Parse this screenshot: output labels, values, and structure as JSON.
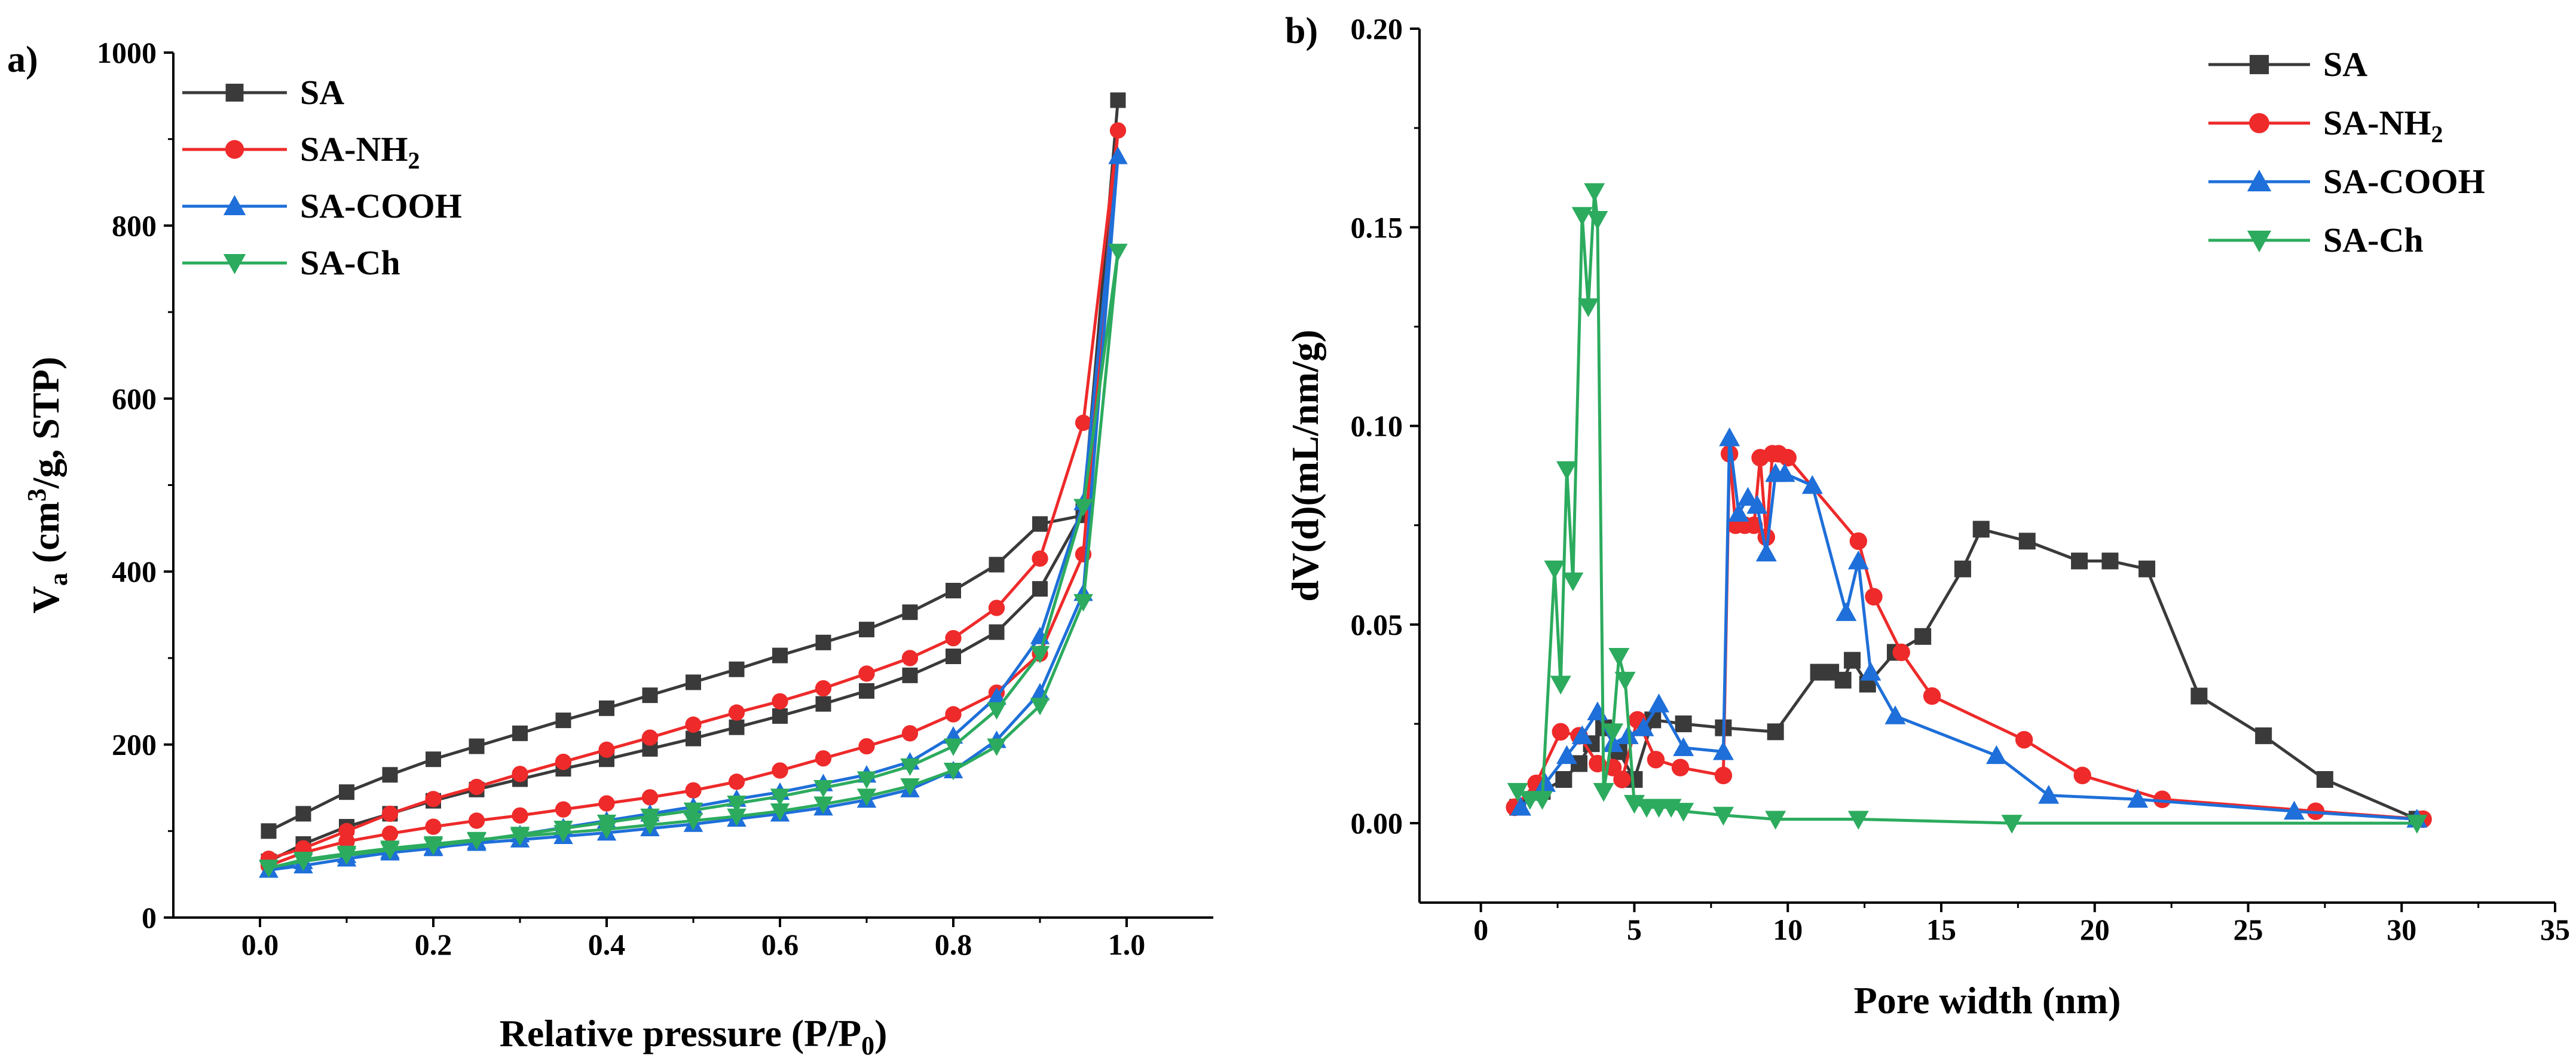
{
  "chart_data": [
    {
      "type": "line",
      "panel_label": "a)",
      "xlabel": "Relative pressure (P/P",
      "xlabel_sub": "0",
      "xlabel_suffix": ")",
      "ylabel": "V",
      "ylabel_sub": "a",
      "ylabel_rest": " (cm",
      "ylabel_sup": "3",
      "ylabel_suffix": "/g,  STP)",
      "xlim": [
        -0.1,
        1.1
      ],
      "ylim": [
        0,
        1000
      ],
      "xticks": [
        0.0,
        0.2,
        0.4,
        0.6,
        0.8,
        1.0
      ],
      "xtick_labels": [
        "0.0",
        "0.2",
        "0.4",
        "0.6",
        "0.8",
        "1.0"
      ],
      "yticks": [
        0,
        200,
        400,
        600,
        800,
        1000
      ],
      "ytick_labels": [
        "0",
        "200",
        "400",
        "600",
        "800",
        "1000"
      ],
      "legend": "top-left",
      "series": [
        {
          "name": "SA",
          "sub": "",
          "color": "#3a3a3a",
          "marker": "square",
          "x": [
            0.01,
            0.05,
            0.1,
            0.15,
            0.2,
            0.25,
            0.3,
            0.35,
            0.4,
            0.45,
            0.5,
            0.55,
            0.6,
            0.65,
            0.7,
            0.75,
            0.8,
            0.85,
            0.9,
            0.95,
            0.99,
            0.95,
            0.9,
            0.85,
            0.8,
            0.75,
            0.7,
            0.65,
            0.6,
            0.55,
            0.5,
            0.45,
            0.4,
            0.35,
            0.3,
            0.25,
            0.2,
            0.15,
            0.1,
            0.05,
            0.01
          ],
          "y": [
            65,
            85,
            105,
            120,
            135,
            148,
            160,
            172,
            183,
            195,
            207,
            220,
            233,
            247,
            262,
            280,
            302,
            330,
            380,
            470,
            945,
            465,
            455,
            408,
            378,
            353,
            333,
            318,
            303,
            287,
            272,
            257,
            242,
            228,
            213,
            198,
            183,
            165,
            145,
            120,
            100
          ]
        },
        {
          "name": "SA-NH",
          "sub": "2",
          "color": "#ee2a2a",
          "marker": "circle",
          "x": [
            0.01,
            0.05,
            0.1,
            0.15,
            0.2,
            0.25,
            0.3,
            0.35,
            0.4,
            0.45,
            0.5,
            0.55,
            0.6,
            0.65,
            0.7,
            0.75,
            0.8,
            0.85,
            0.9,
            0.95,
            0.99,
            0.95,
            0.9,
            0.85,
            0.8,
            0.75,
            0.7,
            0.65,
            0.6,
            0.55,
            0.5,
            0.45,
            0.4,
            0.35,
            0.3,
            0.25,
            0.2,
            0.15,
            0.1,
            0.05,
            0.01
          ],
          "y": [
            60,
            75,
            88,
            97,
            105,
            112,
            118,
            125,
            132,
            139,
            147,
            157,
            170,
            184,
            198,
            213,
            235,
            260,
            305,
            420,
            910,
            572,
            415,
            358,
            323,
            300,
            282,
            265,
            250,
            237,
            223,
            208,
            194,
            180,
            166,
            151,
            137,
            120,
            100,
            80,
            68
          ]
        },
        {
          "name": "SA-COOH",
          "sub": "",
          "color": "#1e6fd9",
          "marker": "triangle-up",
          "x": [
            0.01,
            0.05,
            0.1,
            0.15,
            0.2,
            0.25,
            0.3,
            0.35,
            0.4,
            0.45,
            0.5,
            0.55,
            0.6,
            0.65,
            0.7,
            0.75,
            0.8,
            0.85,
            0.9,
            0.95,
            0.99,
            0.95,
            0.9,
            0.85,
            0.8,
            0.75,
            0.7,
            0.65,
            0.6,
            0.55,
            0.5,
            0.45,
            0.4,
            0.35,
            0.3,
            0.25,
            0.2,
            0.15,
            0.1,
            0.05,
            0.01
          ],
          "y": [
            55,
            65,
            72,
            77,
            81,
            86,
            90,
            94,
            98,
            103,
            108,
            114,
            120,
            127,
            136,
            148,
            170,
            205,
            260,
            375,
            880,
            480,
            325,
            255,
            210,
            180,
            165,
            155,
            145,
            137,
            128,
            120,
            112,
            104,
            96,
            88,
            80,
            75,
            68,
            60,
            55
          ]
        },
        {
          "name": "SA-Ch",
          "sub": "",
          "color": "#2cab5e",
          "marker": "triangle-down",
          "x": [
            0.01,
            0.05,
            0.1,
            0.15,
            0.2,
            0.25,
            0.3,
            0.35,
            0.4,
            0.45,
            0.5,
            0.55,
            0.6,
            0.65,
            0.7,
            0.75,
            0.8,
            0.85,
            0.9,
            0.95,
            0.99,
            0.95,
            0.9,
            0.85,
            0.8,
            0.75,
            0.7,
            0.65,
            0.6,
            0.55,
            0.5,
            0.45,
            0.4,
            0.35,
            0.3,
            0.25,
            0.2,
            0.15,
            0.1,
            0.05,
            0.01
          ],
          "y": [
            57,
            67,
            74,
            80,
            85,
            90,
            94,
            98,
            102,
            107,
            112,
            117,
            123,
            131,
            140,
            152,
            170,
            198,
            245,
            365,
            770,
            475,
            305,
            240,
            198,
            175,
            160,
            150,
            140,
            132,
            124,
            117,
            110,
            103,
            96,
            89,
            83,
            78,
            72,
            65,
            58
          ]
        }
      ]
    },
    {
      "type": "line",
      "panel_label": "b)",
      "xlabel": "Pore width (nm)",
      "ylabel": "dV(d)(mL/nm/g)",
      "xlim": [
        -2,
        35
      ],
      "ylim": [
        -0.02,
        0.2
      ],
      "xticks": [
        0,
        5,
        10,
        15,
        20,
        25,
        30,
        35
      ],
      "xtick_labels": [
        "0",
        "5",
        "10",
        "15",
        "20",
        "25",
        "30",
        "35"
      ],
      "yticks": [
        0.0,
        0.05,
        0.1,
        0.15,
        0.2
      ],
      "ytick_labels": [
        "0.00",
        "0.05",
        "0.10",
        "0.15",
        "0.20"
      ],
      "legend": "top-right",
      "series": [
        {
          "name": "SA",
          "sub": "",
          "color": "#3a3a3a",
          "marker": "square",
          "x": [
            1.2,
            2.0,
            2.7,
            3.2,
            3.6,
            4.0,
            4.5,
            5.0,
            5.6,
            6.6,
            7.9,
            9.6,
            11.0,
            11.4,
            11.8,
            12.1,
            12.6,
            13.5,
            14.4,
            15.7,
            16.3,
            17.8,
            19.5,
            20.5,
            21.7,
            23.4,
            25.5,
            27.5,
            30.5
          ],
          "y": [
            0.004,
            0.008,
            0.011,
            0.015,
            0.02,
            0.024,
            0.018,
            0.011,
            0.026,
            0.025,
            0.024,
            0.023,
            0.038,
            0.038,
            0.036,
            0.041,
            0.035,
            0.043,
            0.047,
            0.064,
            0.074,
            0.071,
            0.066,
            0.066,
            0.064,
            0.032,
            0.022,
            0.011,
            0.001
          ]
        },
        {
          "name": "SA-NH",
          "sub": "2",
          "color": "#ee2a2a",
          "marker": "circle",
          "x": [
            1.1,
            1.8,
            2.6,
            3.2,
            3.8,
            4.3,
            4.6,
            5.1,
            5.7,
            6.5,
            7.9,
            8.1,
            8.3,
            8.6,
            8.9,
            9.1,
            9.3,
            9.5,
            9.7,
            10.0,
            12.3,
            12.8,
            13.7,
            14.7,
            17.7,
            19.6,
            22.2,
            27.2,
            30.7
          ],
          "y": [
            0.004,
            0.01,
            0.023,
            0.022,
            0.015,
            0.014,
            0.011,
            0.026,
            0.016,
            0.014,
            0.012,
            0.093,
            0.075,
            0.075,
            0.075,
            0.092,
            0.072,
            0.093,
            0.093,
            0.092,
            0.071,
            0.057,
            0.043,
            0.032,
            0.021,
            0.012,
            0.006,
            0.003,
            0.001
          ]
        },
        {
          "name": "SA-COOH",
          "sub": "",
          "color": "#1e6fd9",
          "marker": "triangle-up",
          "x": [
            1.3,
            2.1,
            2.8,
            3.3,
            3.8,
            4.3,
            4.8,
            5.3,
            5.8,
            6.6,
            7.9,
            8.1,
            8.4,
            8.7,
            9.0,
            9.3,
            9.6,
            9.9,
            10.8,
            11.9,
            12.3,
            12.7,
            13.5,
            16.8,
            18.5,
            21.4,
            26.5,
            30.5
          ],
          "y": [
            0.004,
            0.01,
            0.017,
            0.022,
            0.028,
            0.02,
            0.022,
            0.024,
            0.03,
            0.019,
            0.018,
            0.097,
            0.078,
            0.082,
            0.08,
            0.068,
            0.088,
            0.088,
            0.085,
            0.053,
            0.066,
            0.038,
            0.027,
            0.017,
            0.007,
            0.006,
            0.003,
            0.001
          ]
        },
        {
          "name": "SA-Ch",
          "sub": "",
          "color": "#2cab5e",
          "marker": "triangle-down",
          "x": [
            1.2,
            1.6,
            2.0,
            2.4,
            2.6,
            2.8,
            3.0,
            3.3,
            3.5,
            3.7,
            3.8,
            4.0,
            4.3,
            4.5,
            4.7,
            5.0,
            5.4,
            5.8,
            6.2,
            6.6,
            7.9,
            9.6,
            12.3,
            17.3,
            30.5
          ],
          "y": [
            0.008,
            0.006,
            0.006,
            0.064,
            0.035,
            0.089,
            0.061,
            0.153,
            0.13,
            0.159,
            0.152,
            0.008,
            0.023,
            0.042,
            0.036,
            0.005,
            0.004,
            0.004,
            0.004,
            0.003,
            0.002,
            0.001,
            0.001,
            0.0,
            0.0
          ]
        }
      ]
    }
  ]
}
